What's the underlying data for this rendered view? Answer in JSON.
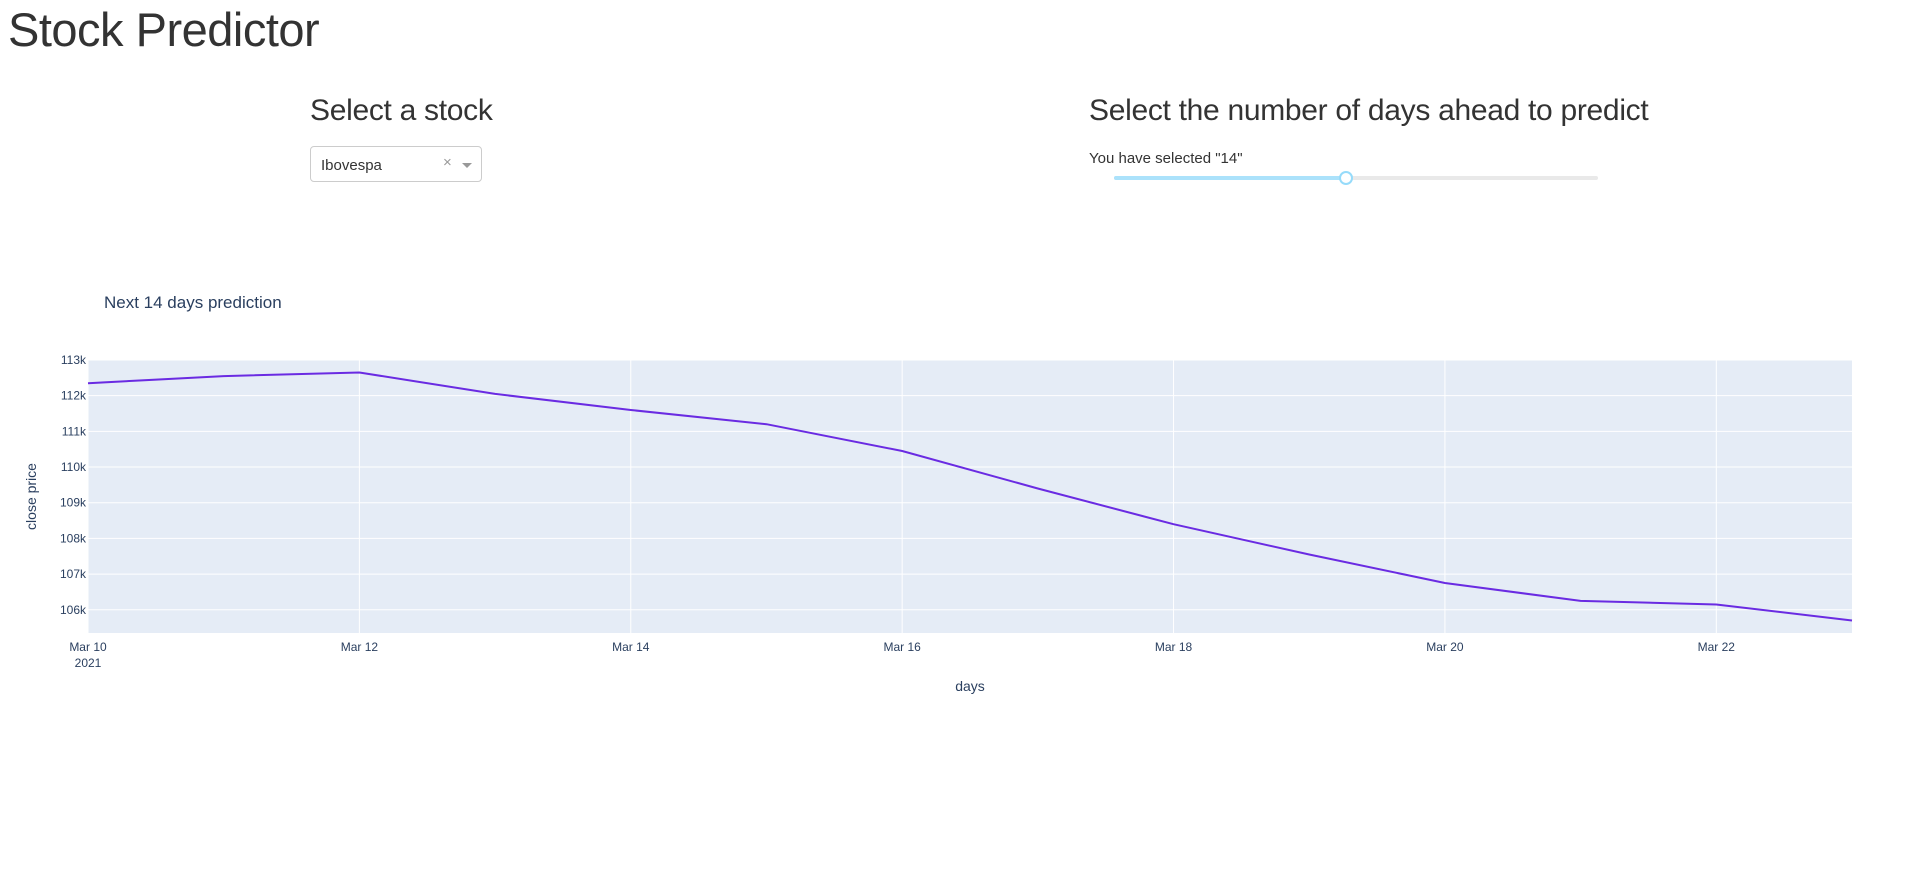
{
  "app": {
    "title": "Stock Predictor"
  },
  "stock_select": {
    "heading": "Select a stock",
    "selected_value": "Ibovespa",
    "clear_symbol": "×"
  },
  "days_select": {
    "heading": "Select the number of days ahead to predict",
    "status_text": "You have selected \"14\"",
    "value_fraction": 0.48
  },
  "colors": {
    "plot_bg": "#e5ecf6",
    "line": "#6a2be2",
    "grid": "#ffffff",
    "slider_track": "#abe2fb",
    "slider_handle": "#96dbfa"
  },
  "chart_data": {
    "type": "line",
    "title": "Next 14 days prediction",
    "xlabel": "days",
    "ylabel": "close price",
    "x": [
      "Mar 10",
      "Mar 11",
      "Mar 12",
      "Mar 13",
      "Mar 14",
      "Mar 15",
      "Mar 16",
      "Mar 17",
      "Mar 18",
      "Mar 19",
      "Mar 20",
      "Mar 21",
      "Mar 22",
      "Mar 23"
    ],
    "values": [
      112350,
      112550,
      112650,
      112050,
      111600,
      111200,
      110450,
      109400,
      108400,
      107550,
      106750,
      106250,
      106150,
      105700
    ],
    "x_ticks": [
      "Mar 10",
      "Mar 12",
      "Mar 14",
      "Mar 16",
      "Mar 18",
      "Mar 20",
      "Mar 22"
    ],
    "x_tick_sublabel": "2021",
    "y_ticks": [
      "106k",
      "107k",
      "108k",
      "109k",
      "110k",
      "111k",
      "112k",
      "113k"
    ],
    "y_tick_values": [
      106000,
      107000,
      108000,
      109000,
      110000,
      111000,
      112000,
      113000
    ],
    "ylim": [
      105350,
      113000
    ],
    "grid": true
  }
}
